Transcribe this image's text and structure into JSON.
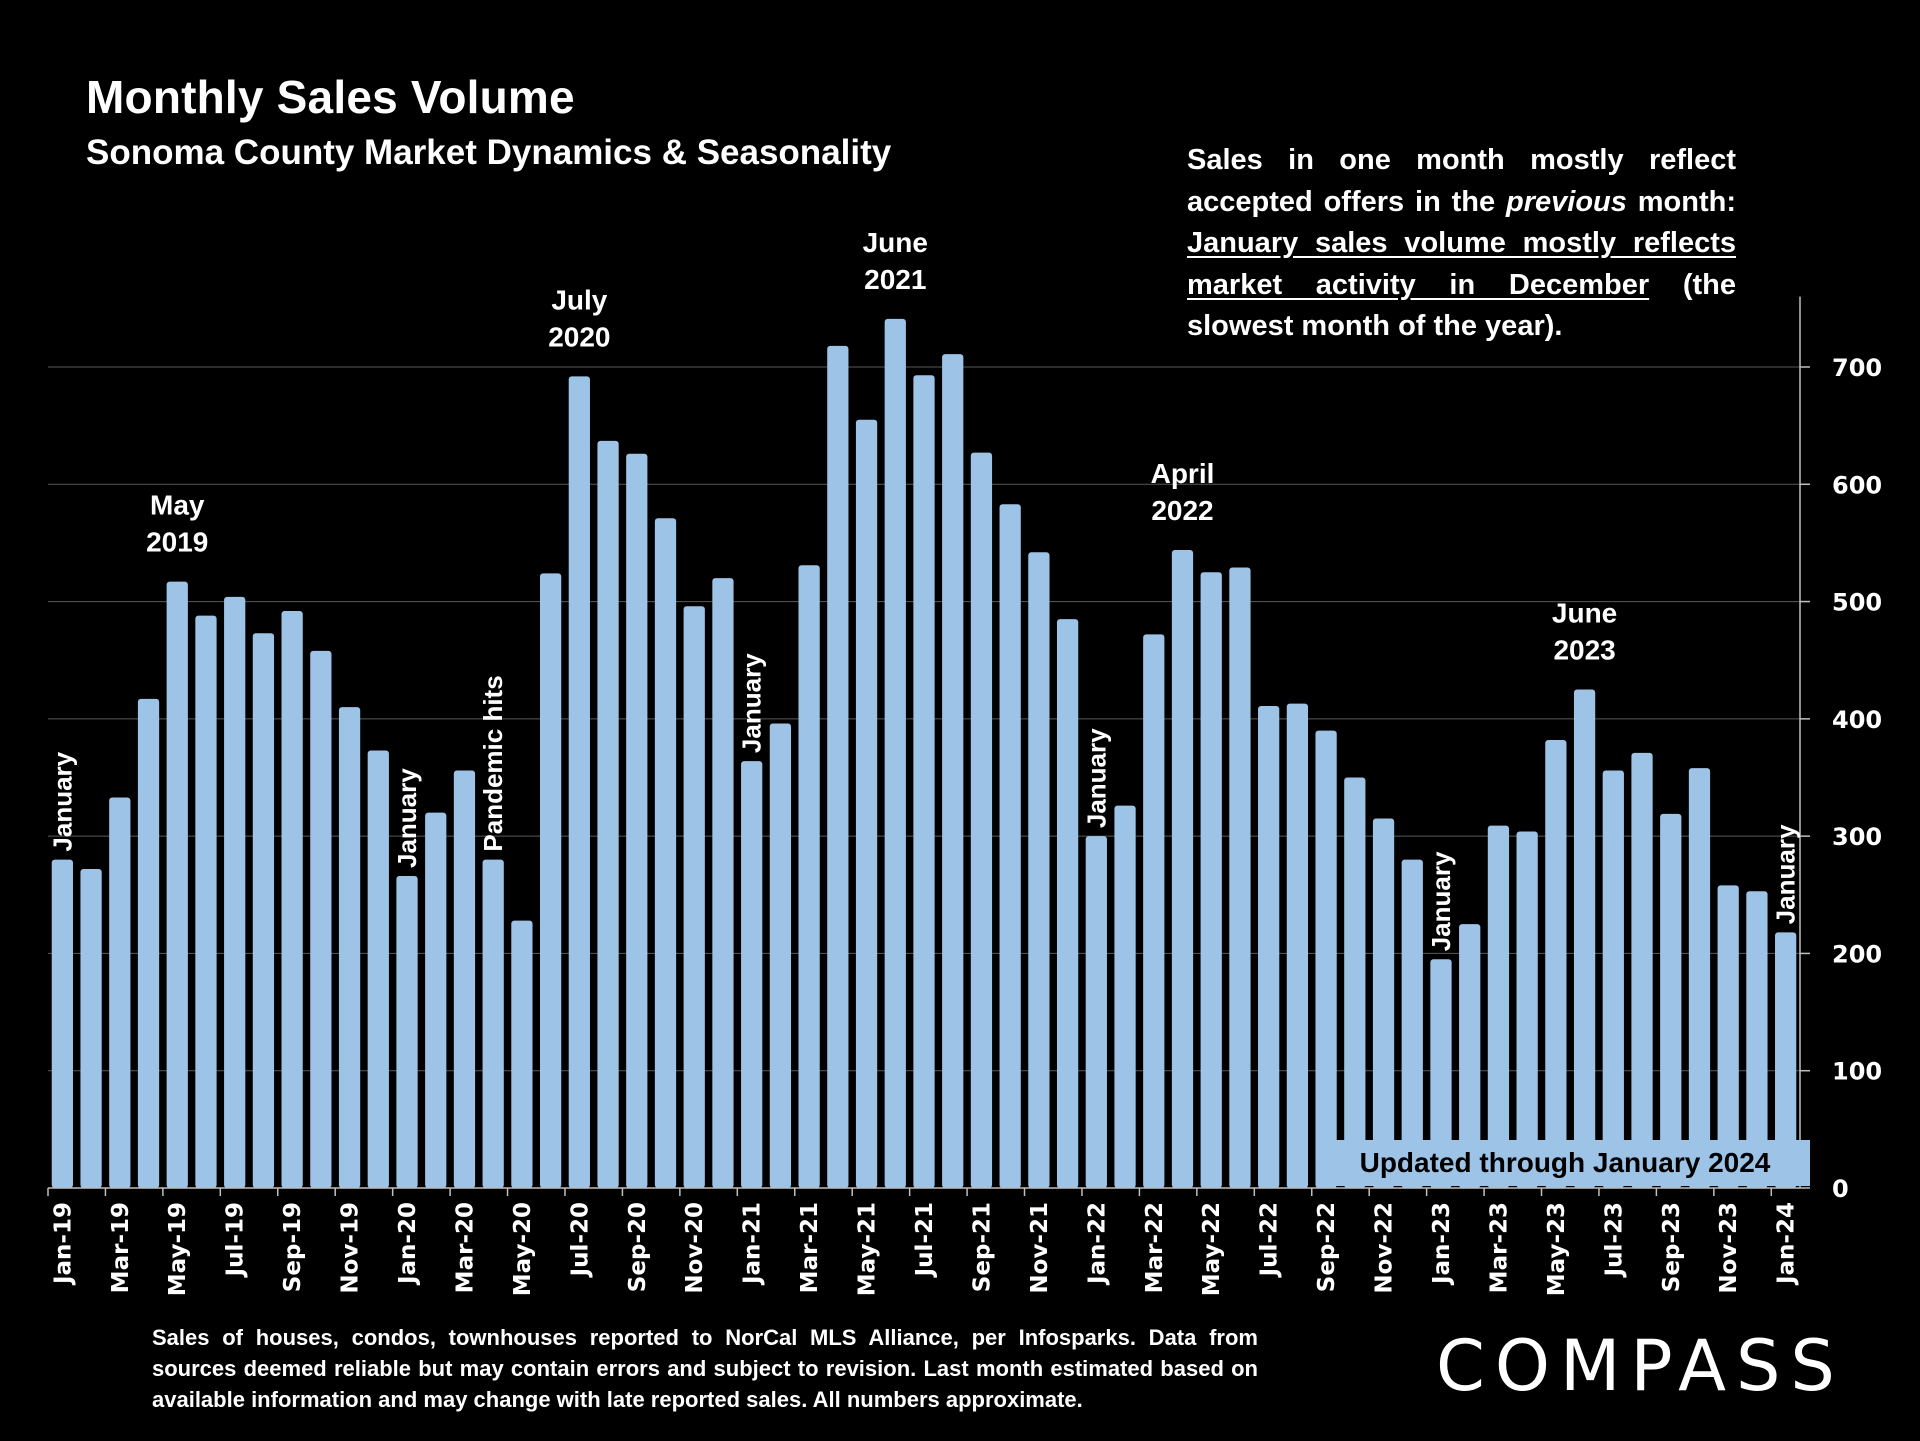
{
  "header": {
    "title": "Monthly Sales Volume",
    "subtitle": "Sonoma County Market Dynamics & Seasonality"
  },
  "note": {
    "part1": "Sales in one month mostly reflect accepted offers in the ",
    "italic": "previous",
    "part2": " month: ",
    "underlined": "January sales volume mostly reflects market activity in December",
    "part3": " (the slowest month of the year)."
  },
  "updated_label": "Updated through January 2024",
  "footer": {
    "disclaimer": "Sales of houses, condos, townhouses reported to NorCal MLS Alliance, per Infosparks. Data from sources deemed reliable but may contain errors and subject to revision. Last month estimated based on available information and may change with late reported sales. All numbers approximate.",
    "logo": "COMPASS"
  },
  "colors": {
    "bar": "#9DC3E6",
    "background": "#000000",
    "text": "#FFFFFF",
    "grid": "#595959"
  },
  "chart_data": {
    "type": "bar",
    "title": "Monthly Sales Volume",
    "subtitle": "Sonoma County Market Dynamics & Seasonality",
    "xlabel": "",
    "ylabel": "",
    "ylim": [
      0,
      750
    ],
    "yticks": [
      0,
      100,
      200,
      300,
      400,
      500,
      600,
      700
    ],
    "y_axis_side": "right",
    "grid": true,
    "categories": [
      "Jan-19",
      "Feb-19",
      "Mar-19",
      "Apr-19",
      "May-19",
      "Jun-19",
      "Jul-19",
      "Aug-19",
      "Sep-19",
      "Oct-19",
      "Nov-19",
      "Dec-19",
      "Jan-20",
      "Feb-20",
      "Mar-20",
      "Apr-20",
      "May-20",
      "Jun-20",
      "Jul-20",
      "Aug-20",
      "Sep-20",
      "Oct-20",
      "Nov-20",
      "Dec-20",
      "Jan-21",
      "Feb-21",
      "Mar-21",
      "Apr-21",
      "May-21",
      "Jun-21",
      "Jul-21",
      "Aug-21",
      "Sep-21",
      "Oct-21",
      "Nov-21",
      "Dec-21",
      "Jan-22",
      "Feb-22",
      "Mar-22",
      "Apr-22",
      "May-22",
      "Jun-22",
      "Jul-22",
      "Aug-22",
      "Sep-22",
      "Oct-22",
      "Nov-22",
      "Dec-22",
      "Jan-23",
      "Feb-23",
      "Mar-23",
      "Apr-23",
      "May-23",
      "Jun-23",
      "Jul-23",
      "Aug-23",
      "Sep-23",
      "Oct-23",
      "Nov-23",
      "Dec-23",
      "Jan-24"
    ],
    "xtick_labels": [
      "Jan-19",
      "Mar-19",
      "May-19",
      "Jul-19",
      "Sep-19",
      "Nov-19",
      "Jan-20",
      "Mar-20",
      "May-20",
      "Jul-20",
      "Sep-20",
      "Nov-20",
      "Jan-21",
      "Mar-21",
      "May-21",
      "Jul-21",
      "Sep-21",
      "Nov-21",
      "Jan-22",
      "Mar-22",
      "May-22",
      "Jul-22",
      "Sep-22",
      "Nov-22",
      "Jan-23",
      "Mar-23",
      "May-23",
      "Jul-23",
      "Sep-23",
      "Nov-23",
      "Jan-24"
    ],
    "series": [
      {
        "name": "Monthly Sales",
        "values": [
          280,
          272,
          333,
          417,
          517,
          488,
          504,
          473,
          492,
          458,
          410,
          373,
          266,
          320,
          356,
          280,
          228,
          524,
          692,
          637,
          626,
          571,
          496,
          520,
          364,
          396,
          531,
          718,
          655,
          741,
          693,
          711,
          627,
          583,
          542,
          485,
          300,
          326,
          472,
          544,
          525,
          529,
          411,
          413,
          390,
          350,
          315,
          280,
          195,
          225,
          309,
          304,
          382,
          425,
          356,
          371,
          319,
          358,
          258,
          253,
          218
        ]
      }
    ],
    "annotations": [
      {
        "category": "Jan-19",
        "text": "January",
        "style": "vertical"
      },
      {
        "category": "May-19",
        "text": "May\n2019",
        "style": "horizontal"
      },
      {
        "category": "Jan-20",
        "text": "January",
        "style": "vertical"
      },
      {
        "category": "Apr-20",
        "text": "Pandemic hits",
        "style": "vertical"
      },
      {
        "category": "Jul-20",
        "text": "July\n2020",
        "style": "horizontal"
      },
      {
        "category": "Jan-21",
        "text": "January",
        "style": "vertical"
      },
      {
        "category": "Jun-21",
        "text": "June\n2021",
        "style": "horizontal"
      },
      {
        "category": "Jan-22",
        "text": "January",
        "style": "vertical"
      },
      {
        "category": "Apr-22",
        "text": "April\n2022",
        "style": "horizontal"
      },
      {
        "category": "Jan-23",
        "text": "January",
        "style": "vertical"
      },
      {
        "category": "Jun-23",
        "text": "June\n2023",
        "style": "horizontal"
      },
      {
        "category": "Jan-24",
        "text": "January",
        "style": "vertical"
      }
    ]
  }
}
